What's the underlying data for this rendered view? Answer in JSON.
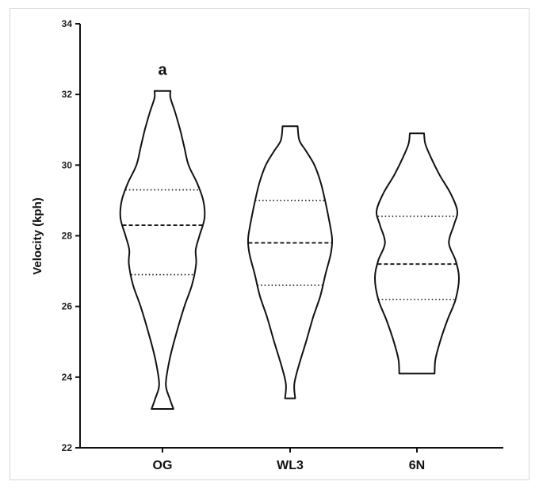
{
  "chart_data": {
    "type": "violin",
    "title": "",
    "xlabel": "",
    "ylabel": "Velocity (kph)",
    "ylim": [
      22,
      34
    ],
    "yticks": [
      "22",
      "24",
      "26",
      "28",
      "30",
      "32",
      "34"
    ],
    "grid": false,
    "categories": [
      "OG",
      "WL3",
      "6N"
    ],
    "annotations": [
      {
        "category": "OG",
        "text": "a"
      }
    ],
    "series": [
      {
        "category": "OG",
        "min": 23.1,
        "max": 32.1,
        "q1": 26.9,
        "median": 28.3,
        "q3": 29.3,
        "density": [
          [
            23.1,
            0.26
          ],
          [
            23.4,
            0.17
          ],
          [
            23.8,
            0.08
          ],
          [
            24.5,
            0.17
          ],
          [
            25.2,
            0.32
          ],
          [
            26.0,
            0.52
          ],
          [
            26.6,
            0.7
          ],
          [
            27.2,
            0.8
          ],
          [
            27.6,
            0.79
          ],
          [
            28.0,
            0.88
          ],
          [
            28.5,
            1.0
          ],
          [
            29.0,
            0.97
          ],
          [
            29.5,
            0.82
          ],
          [
            30.0,
            0.62
          ],
          [
            30.5,
            0.52
          ],
          [
            31.0,
            0.42
          ],
          [
            31.5,
            0.3
          ],
          [
            31.9,
            0.19
          ],
          [
            32.1,
            0.19
          ]
        ]
      },
      {
        "category": "WL3",
        "min": 23.4,
        "max": 31.1,
        "q1": 26.6,
        "median": 27.8,
        "q3": 29.0,
        "density": [
          [
            23.4,
            0.12
          ],
          [
            23.8,
            0.1
          ],
          [
            24.3,
            0.2
          ],
          [
            25.0,
            0.38
          ],
          [
            25.7,
            0.55
          ],
          [
            26.3,
            0.72
          ],
          [
            26.9,
            0.84
          ],
          [
            27.5,
            0.97
          ],
          [
            27.9,
            1.0
          ],
          [
            28.3,
            0.95
          ],
          [
            28.9,
            0.85
          ],
          [
            29.5,
            0.73
          ],
          [
            30.0,
            0.58
          ],
          [
            30.4,
            0.38
          ],
          [
            30.7,
            0.22
          ],
          [
            31.1,
            0.18
          ]
        ]
      },
      {
        "category": "6N",
        "min": 24.1,
        "max": 30.9,
        "q1": 26.2,
        "median": 27.2,
        "q3": 28.55,
        "density": [
          [
            24.1,
            0.42
          ],
          [
            24.5,
            0.44
          ],
          [
            25.0,
            0.55
          ],
          [
            25.6,
            0.72
          ],
          [
            26.2,
            0.92
          ],
          [
            26.8,
            1.0
          ],
          [
            27.3,
            0.92
          ],
          [
            27.8,
            0.76
          ],
          [
            28.3,
            0.88
          ],
          [
            28.7,
            0.96
          ],
          [
            29.2,
            0.8
          ],
          [
            29.7,
            0.55
          ],
          [
            30.2,
            0.34
          ],
          [
            30.6,
            0.2
          ],
          [
            30.9,
            0.17
          ]
        ]
      }
    ]
  }
}
